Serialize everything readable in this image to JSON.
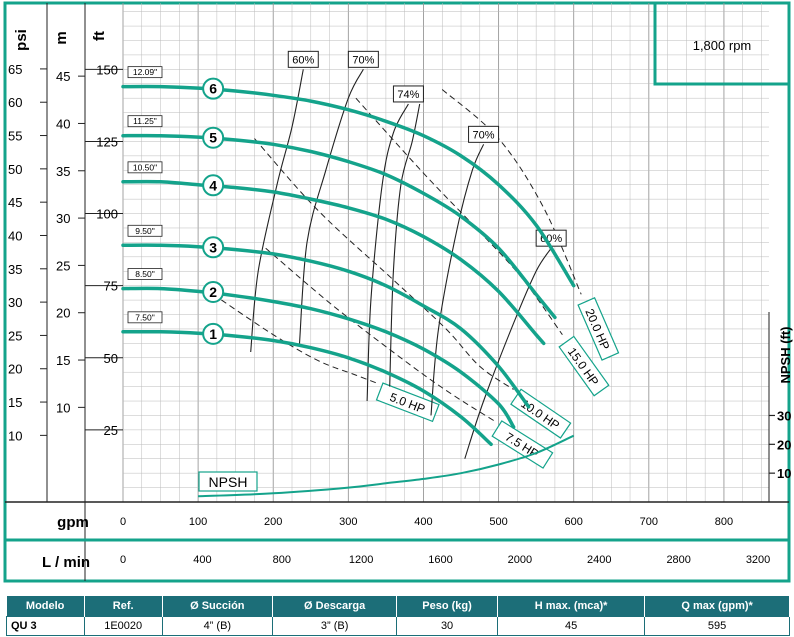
{
  "chart_data": {
    "type": "line",
    "speed_label": "1,800 rpm",
    "y_axes": [
      {
        "title": "psi",
        "ticks": [
          "65",
          "60",
          "55",
          "50",
          "45",
          "40",
          "35",
          "30",
          "25",
          "20",
          "15",
          "10"
        ],
        "values": [
          65,
          60,
          55,
          50,
          45,
          40,
          35,
          30,
          25,
          20,
          15,
          10
        ]
      },
      {
        "title": "m",
        "ticks": [
          "45",
          "40",
          "35",
          "30",
          "25",
          "20",
          "15",
          "10"
        ],
        "values": [
          45,
          40,
          35,
          30,
          25,
          20,
          15,
          10
        ]
      },
      {
        "title": "ft",
        "ticks": [
          "150",
          "125",
          "100",
          "75",
          "50",
          "25"
        ],
        "values": [
          150,
          125,
          100,
          75,
          50,
          25
        ]
      }
    ],
    "x_axes": [
      {
        "title": "gpm",
        "ticks": [
          "0",
          "100",
          "200",
          "300",
          "400",
          "500",
          "600",
          "700",
          "800"
        ],
        "values": [
          0,
          100,
          200,
          300,
          400,
          500,
          600,
          700,
          800
        ]
      },
      {
        "title": "L / min",
        "ticks": [
          "0",
          "400",
          "800",
          "1200",
          "1600",
          "2000",
          "2400",
          "2800",
          "3200"
        ],
        "values": [
          0,
          400,
          800,
          1200,
          1600,
          2000,
          2400,
          2800,
          3200
        ]
      }
    ],
    "x_range_gpm": [
      0,
      860
    ],
    "y_range_ft": [
      0,
      173
    ],
    "npsh_axis": {
      "title": "NPSH (ft)",
      "ticks": [
        "30",
        "20",
        "10"
      ]
    },
    "series": [
      {
        "name": "6",
        "diameter": "12.09\"",
        "x": [
          0,
          50,
          100,
          150,
          200,
          250,
          300,
          350,
          400,
          450,
          500,
          550,
          600
        ],
        "y": [
          144,
          144,
          143.5,
          142.5,
          141,
          139,
          136,
          132,
          127,
          120,
          110,
          96,
          75
        ]
      },
      {
        "name": "5",
        "diameter": "11.25\"",
        "x": [
          0,
          50,
          100,
          150,
          200,
          250,
          300,
          350,
          400,
          450,
          500,
          550,
          575
        ],
        "y": [
          127,
          127,
          126.5,
          125.5,
          124,
          121.5,
          118,
          113.5,
          107,
          99,
          88,
          72,
          64
        ]
      },
      {
        "name": "4",
        "diameter": "10.50\"",
        "x": [
          0,
          50,
          100,
          150,
          200,
          250,
          300,
          350,
          400,
          450,
          500,
          550,
          560
        ],
        "y": [
          111,
          111,
          110,
          109,
          107.5,
          105,
          102,
          98,
          92,
          84,
          73,
          58,
          55
        ]
      },
      {
        "name": "3",
        "diameter": "9.50\"",
        "x": [
          0,
          50,
          100,
          150,
          200,
          250,
          300,
          350,
          400,
          450,
          500,
          540
        ],
        "y": [
          89,
          89,
          88.5,
          87.5,
          86,
          83.5,
          80,
          75,
          68,
          60,
          47,
          33
        ]
      },
      {
        "name": "2",
        "diameter": "8.50\"",
        "x": [
          0,
          50,
          100,
          150,
          200,
          250,
          300,
          350,
          400,
          450,
          500,
          520
        ],
        "y": [
          74,
          74,
          73,
          71.5,
          69.5,
          67,
          63.5,
          59,
          53,
          45,
          34,
          26
        ]
      },
      {
        "name": "1",
        "diameter": "7.50\"",
        "x": [
          0,
          50,
          100,
          150,
          200,
          250,
          300,
          350,
          400,
          450,
          490
        ],
        "y": [
          59,
          59,
          58.5,
          57.5,
          56,
          53.5,
          50,
          45,
          38.5,
          29.5,
          20
        ]
      }
    ],
    "npsh_curve": {
      "name": "NPSH",
      "x": [
        100,
        200,
        300,
        350,
        400,
        450,
        500,
        550,
        600
      ],
      "y": [
        2,
        3,
        5,
        6.5,
        8,
        10,
        13,
        17,
        23
      ]
    },
    "efficiency_lines": [
      {
        "label": "60%",
        "x": [
          170,
          180,
          205,
          225,
          240
        ],
        "y": [
          52,
          80,
          110,
          130,
          150
        ]
      },
      {
        "label": "70%",
        "x": [
          235,
          245,
          270,
          300,
          320
        ],
        "y": [
          55,
          90,
          115,
          140,
          150
        ]
      },
      {
        "label": "74%",
        "x": [
          325,
          330,
          345,
          360,
          380
        ],
        "y": [
          35,
          70,
          110,
          128,
          138
        ]
      },
      {
        "label": "74%",
        "x": [
          355,
          360,
          370,
          385,
          395
        ],
        "y": [
          40,
          80,
          110,
          125,
          138
        ]
      },
      {
        "label": "70%",
        "x": [
          410,
          420,
          445,
          465,
          480
        ],
        "y": [
          30,
          60,
          95,
          115,
          124
        ]
      },
      {
        "label": "60%",
        "x": [
          455,
          480,
          520,
          550,
          570
        ],
        "y": [
          15,
          35,
          62,
          80,
          88
        ]
      }
    ],
    "hp_lines": [
      {
        "label": "20.0 HP",
        "x": [
          425,
          500,
          560,
          610
        ],
        "y": [
          143,
          126,
          102,
          72
        ]
      },
      {
        "label": "15.0 HP",
        "x": [
          310,
          400,
          470,
          530,
          585
        ],
        "y": [
          140,
          114,
          95,
          78,
          58
        ]
      },
      {
        "label": "10.0 HP",
        "x": [
          175,
          260,
          360,
          430,
          475,
          520
        ],
        "y": [
          126,
          101,
          77,
          60,
          47,
          39
        ]
      },
      {
        "label": "7.5 HP",
        "x": [
          190,
          280,
          380,
          440,
          495
        ],
        "y": [
          88,
          68,
          48,
          37,
          28
        ]
      },
      {
        "label": "5.0 HP",
        "x": [
          120,
          200,
          260,
          310,
          340
        ],
        "y": [
          72,
          58,
          49,
          44,
          41
        ]
      }
    ]
  },
  "spec_table": {
    "headers": [
      "Modelo",
      "Ref.",
      "Ø Succión",
      "Ø Descarga",
      "Peso (kg)",
      "H max. (mca)*",
      "Q max (gpm)*"
    ],
    "rows": [
      [
        "QU 3",
        "1E0020",
        "4” (B)",
        "3” (B)",
        "30",
        "45",
        "595"
      ]
    ]
  },
  "colors": {
    "curve": "#14a38b",
    "frame": "#14a38b",
    "grid": "#bbbbbb",
    "table_header": "#1c6e78"
  }
}
